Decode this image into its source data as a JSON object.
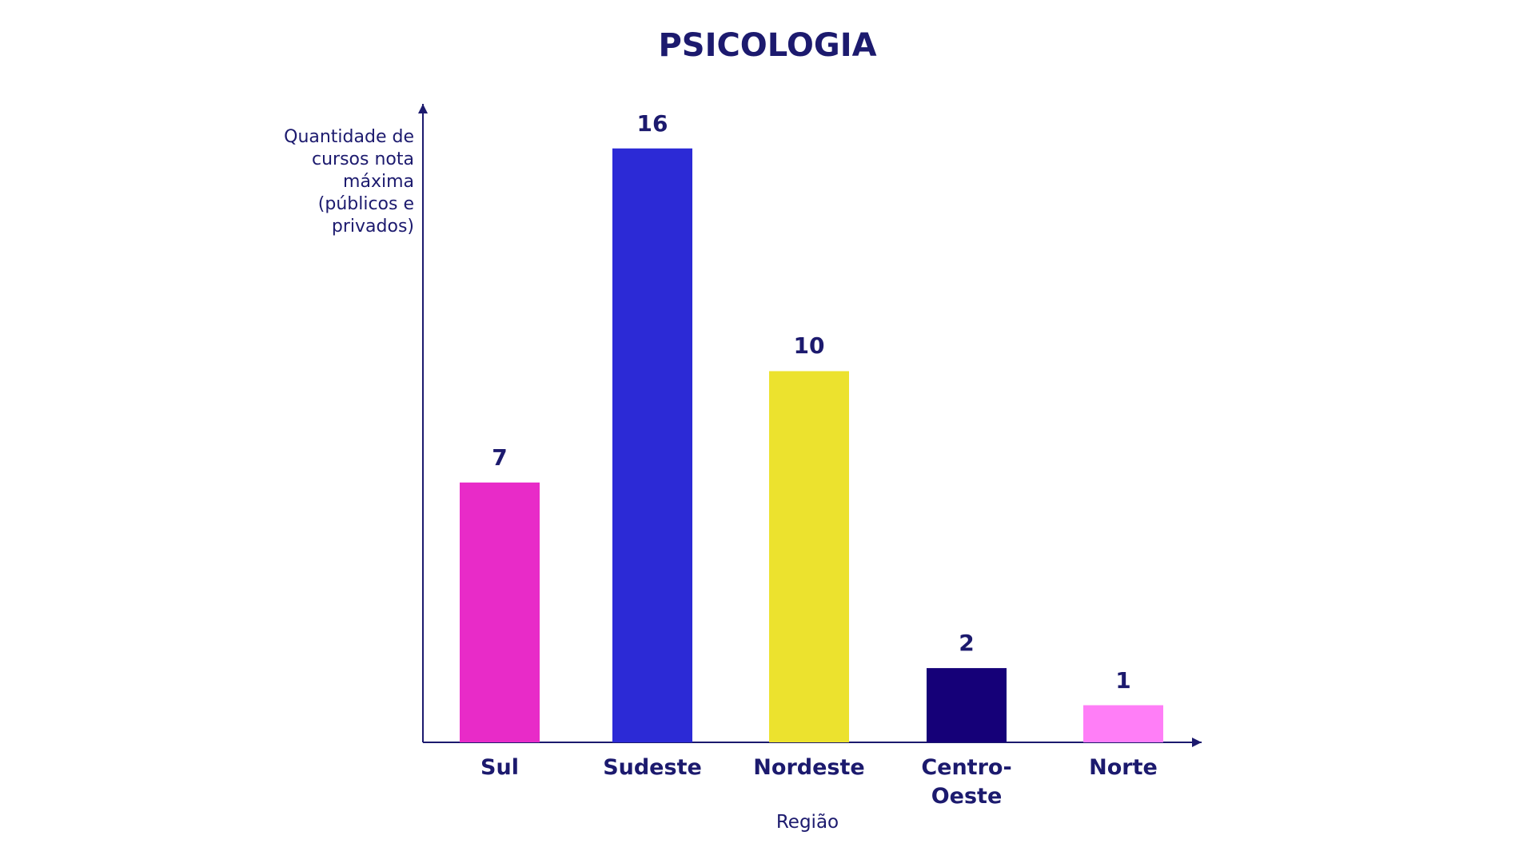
{
  "chart_data": {
    "type": "bar",
    "title": "PSICOLOGIA",
    "x_label": "Região",
    "y_label": "Quantidade de cursos nota máxima (públicos e privados)",
    "categories": [
      "Sul",
      "Sudeste",
      "Nordeste",
      "Centro-Oeste",
      "Norte"
    ],
    "values": [
      7,
      16,
      10,
      2,
      1
    ],
    "colors": [
      "#e82bc8",
      "#2c2ad6",
      "#ece22e",
      "#150078",
      "#ff7ef7"
    ],
    "ylim": [
      0,
      17.2
    ]
  }
}
